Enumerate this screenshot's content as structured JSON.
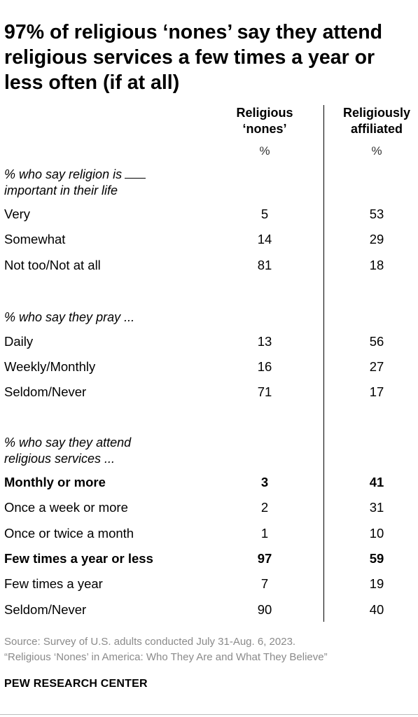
{
  "title": "97% of religious ‘nones’ say they attend religious services a few times a year or less often (if at all)",
  "columns": {
    "nones_line1": "Religious",
    "nones_line2": "‘nones’",
    "affiliated_line1": "Religiously",
    "affiliated_line2": "affiliated",
    "unit": "%"
  },
  "sections": [
    {
      "label_line1": "% who say religion is",
      "label_line2": "important in their life",
      "rows": [
        {
          "label": "Very",
          "nones": "5",
          "affiliated": "53",
          "bold": false
        },
        {
          "label": "Somewhat",
          "nones": "14",
          "affiliated": "29",
          "bold": false
        },
        {
          "label": "Not too/Not at all",
          "nones": "81",
          "affiliated": "18",
          "bold": false
        }
      ]
    },
    {
      "label_line1": "% who say they pray ...",
      "rows": [
        {
          "label": "Daily",
          "nones": "13",
          "affiliated": "56",
          "bold": false
        },
        {
          "label": "Weekly/Monthly",
          "nones": "16",
          "affiliated": "27",
          "bold": false
        },
        {
          "label": "Seldom/Never",
          "nones": "71",
          "affiliated": "17",
          "bold": false
        }
      ]
    },
    {
      "label_line1": "% who say they attend",
      "label_line2": "religious services ...",
      "rows": [
        {
          "label": "Monthly or more",
          "nones": "3",
          "affiliated": "41",
          "bold": true
        },
        {
          "label": "Once a week or more",
          "nones": "2",
          "affiliated": "31",
          "bold": false
        },
        {
          "label": "Once or twice a month",
          "nones": "1",
          "affiliated": "10",
          "bold": false
        },
        {
          "label": "Few times a year or less",
          "nones": "97",
          "affiliated": "59",
          "bold": true
        },
        {
          "label": "Few times a year",
          "nones": "7",
          "affiliated": "19",
          "bold": false
        },
        {
          "label": "Seldom/Never",
          "nones": "90",
          "affiliated": "40",
          "bold": false
        }
      ]
    }
  ],
  "source_line1": "Source: Survey of U.S. adults conducted July 31-Aug. 6, 2023.",
  "source_line2": "“Religious ‘Nones’ in America: Who They Are and What They Believe”",
  "brand": "PEW RESEARCH CENTER",
  "chart_data": {
    "type": "table",
    "title": "97% of religious ‘nones’ say they attend religious services a few times a year or less often (if at all)",
    "columns": [
      "Religious ‘nones’",
      "Religiously affiliated"
    ],
    "unit": "%",
    "groups": [
      {
        "name": "% who say religion is ___ important in their life",
        "categories": [
          "Very",
          "Somewhat",
          "Not too/Not at all"
        ],
        "series": [
          {
            "name": "Religious ‘nones’",
            "values": [
              5,
              14,
              81
            ]
          },
          {
            "name": "Religiously affiliated",
            "values": [
              53,
              29,
              18
            ]
          }
        ]
      },
      {
        "name": "% who say they pray ...",
        "categories": [
          "Daily",
          "Weekly/Monthly",
          "Seldom/Never"
        ],
        "series": [
          {
            "name": "Religious ‘nones’",
            "values": [
              13,
              16,
              71
            ]
          },
          {
            "name": "Religiously affiliated",
            "values": [
              56,
              27,
              17
            ]
          }
        ]
      },
      {
        "name": "% who say they attend religious services ...",
        "categories": [
          "Monthly or more",
          "Once a week or more",
          "Once or twice a month",
          "Few times a year or less",
          "Few times a year",
          "Seldom/Never"
        ],
        "series": [
          {
            "name": "Religious ‘nones’",
            "values": [
              3,
              2,
              1,
              97,
              7,
              90
            ]
          },
          {
            "name": "Religiously affiliated",
            "values": [
              41,
              31,
              10,
              59,
              19,
              40
            ]
          }
        ]
      }
    ]
  }
}
